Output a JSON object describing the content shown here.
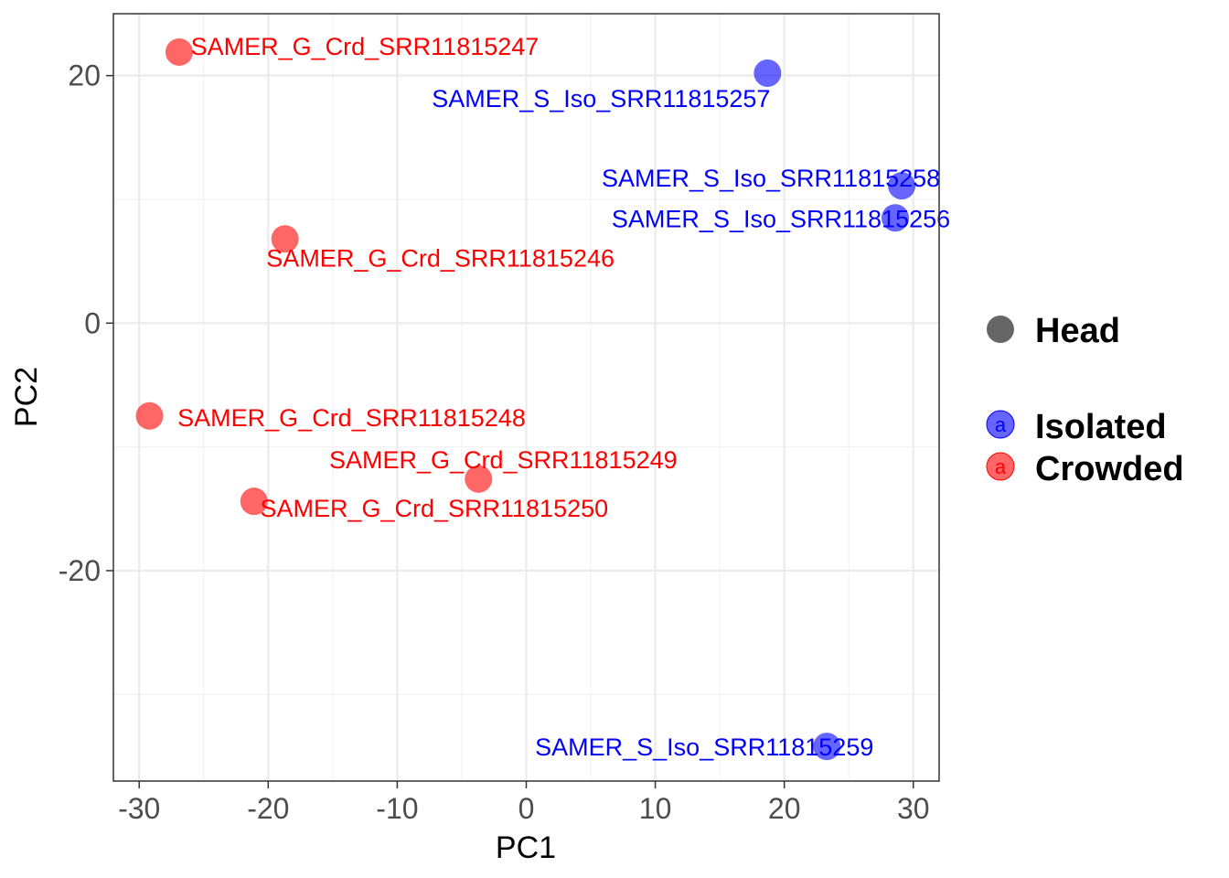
{
  "chart_data": {
    "type": "scatter",
    "xlabel": "PC1",
    "ylabel": "PC2",
    "xlim": [
      -32,
      32
    ],
    "ylim": [
      -37,
      25
    ],
    "x_ticks": [
      -30,
      -20,
      -10,
      0,
      10,
      20,
      30
    ],
    "y_ticks": [
      -20,
      0,
      20
    ],
    "x_tick_labels": [
      "-30",
      "-20",
      "-10",
      "0",
      "10",
      "20",
      "30"
    ],
    "y_tick_labels": [
      "-20",
      "0",
      "20"
    ],
    "grid": true,
    "legend_position": "right",
    "legend": {
      "shape": {
        "label": "Head",
        "color": "#666666"
      },
      "groups": [
        {
          "label": "Isolated",
          "color": "#0000ff",
          "key_glyph": "a"
        },
        {
          "label": "Crowded",
          "color": "#ff0000",
          "key_glyph": "a"
        }
      ]
    },
    "series": [
      {
        "name": "Isolated",
        "color": "#0000ff",
        "points": [
          {
            "x": 18.7,
            "y": 20.2,
            "label": "SAMER_S_Iso_SRR11815257"
          },
          {
            "x": 29.1,
            "y": 11.1,
            "label": "SAMER_S_Iso_SRR11815258"
          },
          {
            "x": 28.6,
            "y": 8.5,
            "label": "SAMER_S_Iso_SRR11815256"
          },
          {
            "x": 23.3,
            "y": -34.2,
            "label": "SAMER_S_Iso_SRR11815259"
          }
        ]
      },
      {
        "name": "Crowded",
        "color": "#ff0000",
        "points": [
          {
            "x": -26.9,
            "y": 21.9,
            "label": "SAMER_G_Crd_SRR11815247"
          },
          {
            "x": -18.7,
            "y": 6.8,
            "label": "SAMER_G_Crd_SRR11815246"
          },
          {
            "x": -29.2,
            "y": -7.5,
            "label": "SAMER_G_Crd_SRR11815248"
          },
          {
            "x": -3.7,
            "y": -12.6,
            "label": "SAMER_G_Crd_SRR11815249"
          },
          {
            "x": -21.1,
            "y": -14.4,
            "label": "SAMER_G_Crd_SRR11815250"
          }
        ]
      }
    ]
  }
}
